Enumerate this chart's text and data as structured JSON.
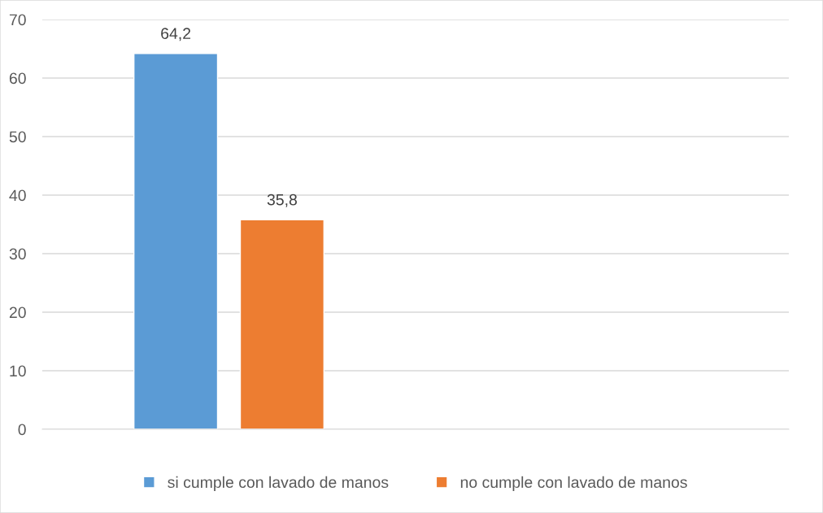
{
  "chart_data": {
    "type": "bar",
    "categories": [
      null,
      null
    ],
    "series": [
      {
        "name": "si cumple con lavado de manos",
        "color": "#5b9bd5",
        "values": [
          64.2,
          null
        ],
        "value_labels": [
          "64,2",
          null
        ]
      },
      {
        "name": "no cumple con lavado de manos",
        "color": "#ed7d31",
        "values": [
          35.8,
          null
        ],
        "value_labels": [
          "35,8",
          null
        ]
      }
    ],
    "ylim": [
      0,
      70
    ],
    "yticks": [
      0,
      10,
      20,
      30,
      40,
      50,
      60,
      70
    ],
    "grid": "y",
    "legend": "bottom"
  }
}
